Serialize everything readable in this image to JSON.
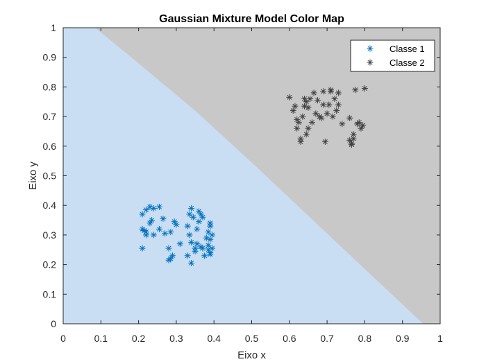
{
  "chart_data": {
    "type": "scatter",
    "title": "Gaussian Mixture Model Color Map",
    "xlabel": "Eixo x",
    "ylabel": "Eixo y",
    "xlim": [
      0,
      1
    ],
    "ylim": [
      0,
      1
    ],
    "xticks": [
      "0",
      "0.1",
      "0.2",
      "0.3",
      "0.4",
      "0.5",
      "0.6",
      "0.7",
      "0.8",
      "0.9",
      "1"
    ],
    "yticks": [
      "0",
      "0.1",
      "0.2",
      "0.3",
      "0.4",
      "0.5",
      "0.6",
      "0.7",
      "0.8",
      "0.9",
      "1"
    ],
    "grid": false,
    "legend_position": "top-right",
    "background_regions": [
      {
        "class": "Classe 1",
        "color": "#c9ddf3"
      },
      {
        "class": "Classe 2",
        "color": "#c8c8c8"
      }
    ],
    "decision_boundary": [
      [
        0.085,
        1.0
      ],
      [
        0.2,
        0.88
      ],
      [
        0.35,
        0.72
      ],
      [
        0.5,
        0.545
      ],
      [
        0.65,
        0.365
      ],
      [
        0.8,
        0.185
      ],
      [
        0.955,
        0.0
      ]
    ],
    "series": [
      {
        "name": "Classe 1",
        "color": "#0072bd",
        "marker": "asterisk",
        "points": [
          [
            0.21,
            0.37
          ],
          [
            0.22,
            0.385
          ],
          [
            0.23,
            0.395
          ],
          [
            0.24,
            0.39
          ],
          [
            0.255,
            0.395
          ],
          [
            0.21,
            0.32
          ],
          [
            0.22,
            0.31
          ],
          [
            0.215,
            0.315
          ],
          [
            0.23,
            0.34
          ],
          [
            0.235,
            0.35
          ],
          [
            0.24,
            0.3
          ],
          [
            0.255,
            0.32
          ],
          [
            0.265,
            0.355
          ],
          [
            0.21,
            0.255
          ],
          [
            0.22,
            0.3
          ],
          [
            0.27,
            0.305
          ],
          [
            0.28,
            0.215
          ],
          [
            0.285,
            0.22
          ],
          [
            0.28,
            0.255
          ],
          [
            0.285,
            0.31
          ],
          [
            0.29,
            0.23
          ],
          [
            0.295,
            0.345
          ],
          [
            0.3,
            0.335
          ],
          [
            0.31,
            0.27
          ],
          [
            0.33,
            0.23
          ],
          [
            0.33,
            0.33
          ],
          [
            0.335,
            0.37
          ],
          [
            0.34,
            0.39
          ],
          [
            0.345,
            0.36
          ],
          [
            0.335,
            0.3
          ],
          [
            0.34,
            0.275
          ],
          [
            0.34,
            0.205
          ],
          [
            0.35,
            0.245
          ],
          [
            0.35,
            0.255
          ],
          [
            0.355,
            0.27
          ],
          [
            0.355,
            0.32
          ],
          [
            0.36,
            0.345
          ],
          [
            0.36,
            0.38
          ],
          [
            0.365,
            0.37
          ],
          [
            0.37,
            0.36
          ],
          [
            0.365,
            0.26
          ],
          [
            0.37,
            0.255
          ],
          [
            0.375,
            0.23
          ],
          [
            0.38,
            0.29
          ],
          [
            0.385,
            0.31
          ],
          [
            0.39,
            0.33
          ],
          [
            0.385,
            0.25
          ],
          [
            0.39,
            0.24
          ],
          [
            0.395,
            0.255
          ],
          [
            0.39,
            0.285
          ],
          [
            0.39,
            0.235
          ],
          [
            0.395,
            0.3
          ],
          [
            0.39,
            0.34
          ],
          [
            0.385,
            0.265
          ]
        ]
      },
      {
        "name": "Classe 2",
        "color": "#404040",
        "marker": "asterisk",
        "points": [
          [
            0.6,
            0.765
          ],
          [
            0.61,
            0.72
          ],
          [
            0.615,
            0.735
          ],
          [
            0.62,
            0.69
          ],
          [
            0.62,
            0.66
          ],
          [
            0.625,
            0.68
          ],
          [
            0.63,
            0.625
          ],
          [
            0.63,
            0.615
          ],
          [
            0.635,
            0.7
          ],
          [
            0.64,
            0.735
          ],
          [
            0.64,
            0.76
          ],
          [
            0.645,
            0.75
          ],
          [
            0.645,
            0.64
          ],
          [
            0.65,
            0.66
          ],
          [
            0.65,
            0.73
          ],
          [
            0.655,
            0.76
          ],
          [
            0.66,
            0.68
          ],
          [
            0.665,
            0.78
          ],
          [
            0.67,
            0.71
          ],
          [
            0.675,
            0.755
          ],
          [
            0.68,
            0.7
          ],
          [
            0.685,
            0.695
          ],
          [
            0.69,
            0.74
          ],
          [
            0.69,
            0.785
          ],
          [
            0.695,
            0.615
          ],
          [
            0.7,
            0.71
          ],
          [
            0.705,
            0.74
          ],
          [
            0.71,
            0.785
          ],
          [
            0.71,
            0.79
          ],
          [
            0.715,
            0.7
          ],
          [
            0.72,
            0.76
          ],
          [
            0.725,
            0.72
          ],
          [
            0.73,
            0.78
          ],
          [
            0.73,
            0.74
          ],
          [
            0.74,
            0.675
          ],
          [
            0.76,
            0.695
          ],
          [
            0.76,
            0.62
          ],
          [
            0.765,
            0.61
          ],
          [
            0.77,
            0.64
          ],
          [
            0.77,
            0.625
          ],
          [
            0.775,
            0.79
          ],
          [
            0.78,
            0.675
          ],
          [
            0.785,
            0.68
          ],
          [
            0.79,
            0.66
          ],
          [
            0.795,
            0.67
          ],
          [
            0.8,
            0.795
          ],
          [
            0.765,
            0.605
          ]
        ]
      }
    ]
  }
}
